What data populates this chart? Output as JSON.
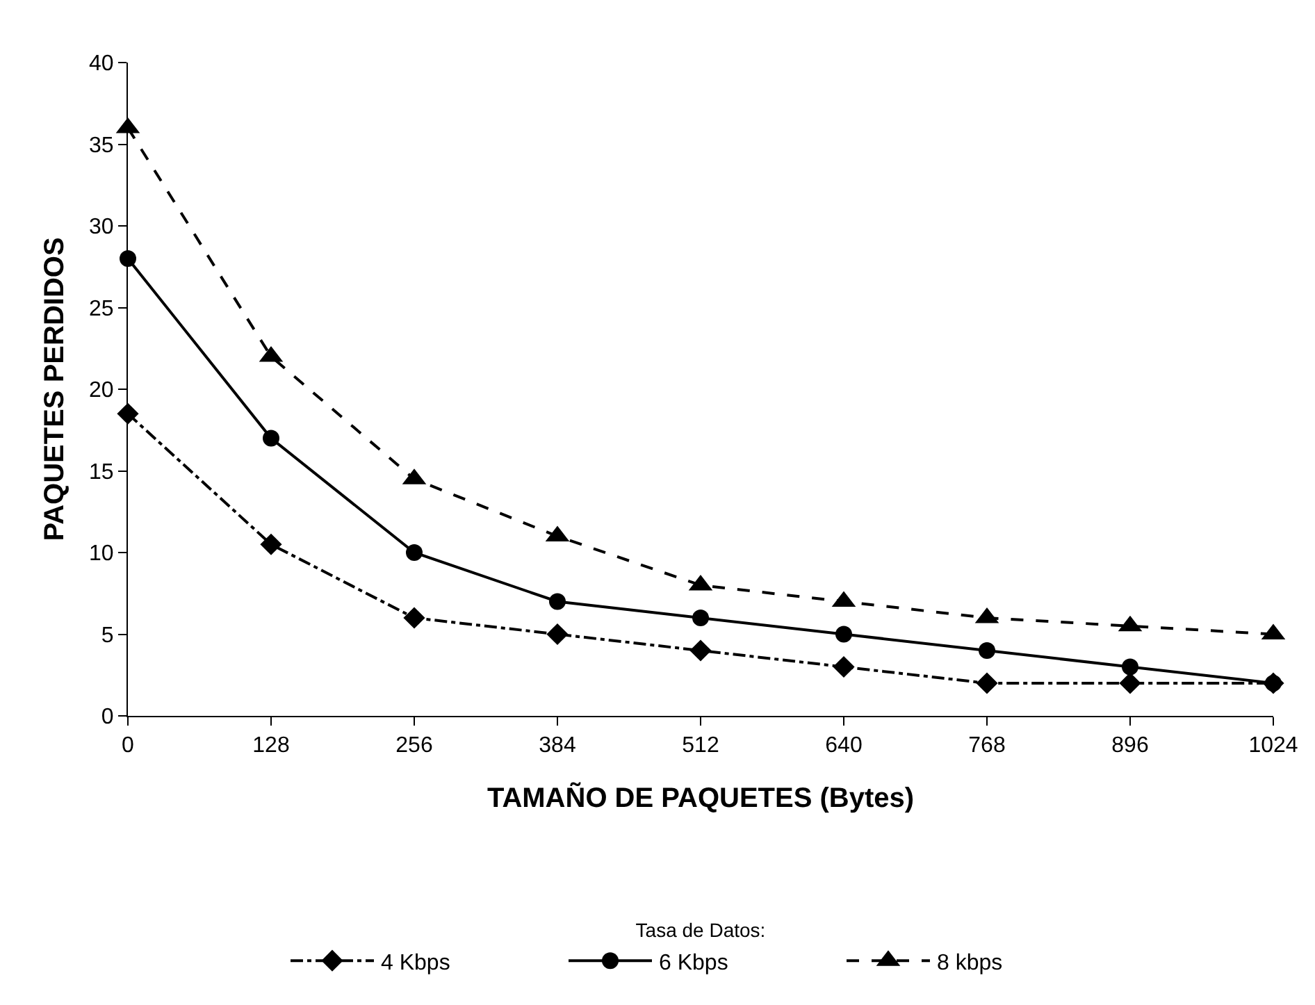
{
  "chart_data": {
    "type": "line",
    "xlabel": "TAMAÑO DE PAQUETES (Bytes)",
    "ylabel": "PAQUETES PERDIDOS",
    "legend_title": "Tasa de Datos:",
    "x": [
      0,
      128,
      256,
      384,
      512,
      640,
      768,
      896,
      1024
    ],
    "series": [
      {
        "name": "4 Kbps",
        "color": "#000000",
        "marker": "diamond",
        "line_style": "dashdot",
        "values": [
          18.5,
          10.5,
          6,
          5,
          4,
          3,
          2,
          2,
          2
        ]
      },
      {
        "name": "6 Kbps",
        "color": "#000000",
        "marker": "circle",
        "line_style": "solid",
        "values": [
          28,
          17,
          10,
          7,
          6,
          5,
          4,
          3,
          2
        ]
      },
      {
        "name": "8 kbps",
        "color": "#000000",
        "marker": "triangle",
        "line_style": "dashed",
        "values": [
          36,
          22,
          14.5,
          11,
          8,
          7,
          6,
          5.5,
          5
        ]
      }
    ],
    "xlim": [
      0,
      1024
    ],
    "xticks": [
      0,
      128,
      256,
      384,
      512,
      640,
      768,
      896,
      1024
    ],
    "ylim": [
      0,
      40
    ],
    "yticks": [
      0,
      5,
      10,
      15,
      20,
      25,
      30,
      35,
      40
    ],
    "legend": "bottom"
  }
}
